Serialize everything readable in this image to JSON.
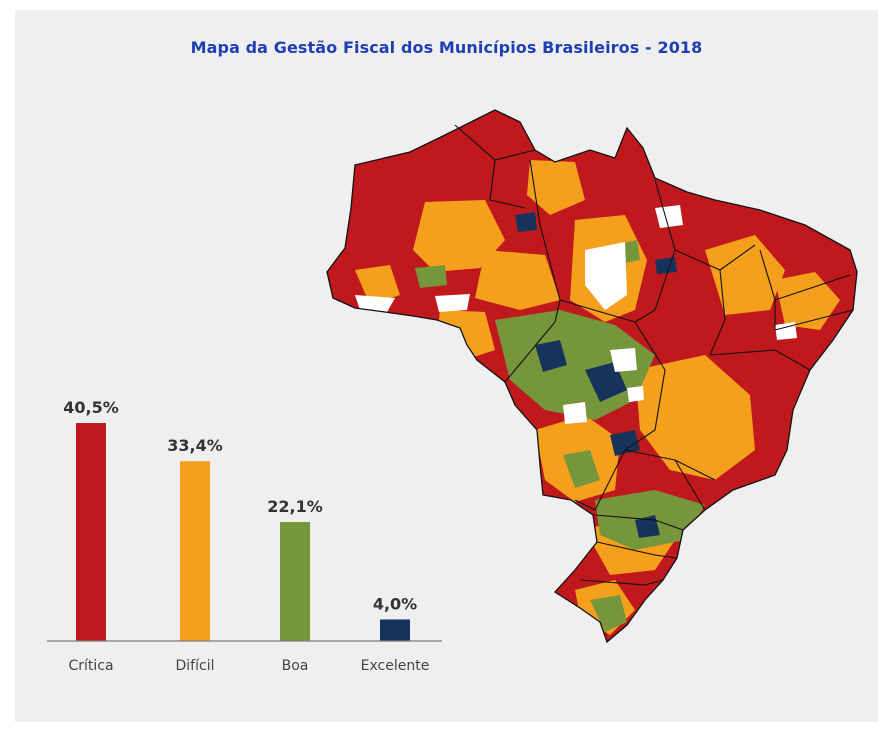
{
  "title": "Mapa da Gestão Fiscal dos Municípios Brasileiros - 2018",
  "chart_data": [
    {
      "type": "bar",
      "categories": [
        "Crítica",
        "Difícil",
        "Boa",
        "Excelente"
      ],
      "values": [
        40.5,
        33.4,
        22.1,
        4.0
      ],
      "value_labels": [
        "40,5%",
        "33,4%",
        "22,1%",
        "4,0%"
      ],
      "colors": [
        "#c0191d",
        "#f5a01c",
        "#76963c",
        "#16335b"
      ],
      "unit": "%",
      "ylim": [
        0,
        40.5
      ],
      "grid": false,
      "legend": "none"
    }
  ],
  "map": {
    "description_colors": {
      "critica": "#c0191d",
      "dificil": "#f5a01c",
      "boa": "#76963c",
      "excelente": "#16335b",
      "sem_dados": "#ffffff"
    }
  }
}
